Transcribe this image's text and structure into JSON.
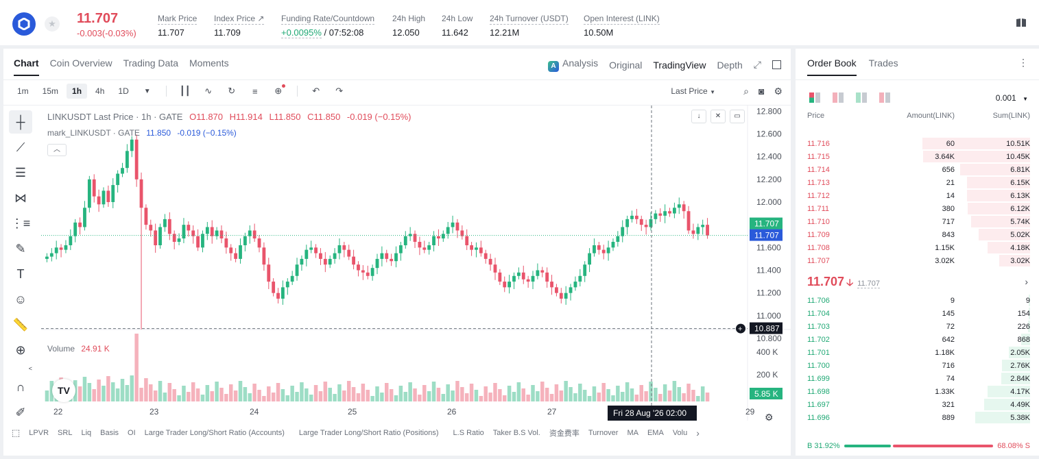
{
  "ticker": {
    "last_price": "11.707",
    "change": "-0.003(-0.03%)",
    "stats": [
      {
        "label": "Mark Price",
        "value": "11.707"
      },
      {
        "label": "Index Price ↗",
        "value": "11.709"
      },
      {
        "label": "Funding Rate/Countdown",
        "value_green": "+0.0095%",
        "value": " / 07:52:08"
      },
      {
        "label": "24h High",
        "value": "12.050"
      },
      {
        "label": "24h Low",
        "value": "11.642"
      },
      {
        "label": "24h Turnover (USDT)",
        "value": "12.21M"
      },
      {
        "label": "Open Interest (LINK)",
        "value": "10.50M"
      }
    ]
  },
  "chart_tabs": [
    "Chart",
    "Coin Overview",
    "Trading Data",
    "Moments"
  ],
  "view_tabs": {
    "analysis": "Analysis",
    "original": "Original",
    "tradingview": "TradingView",
    "depth": "Depth"
  },
  "timeframes": [
    "1m",
    "15m",
    "1h",
    "4h",
    "1D"
  ],
  "last_price_select": "Last Price",
  "legend": {
    "symbol": "LINKUSDT Last Price · 1h · GATE",
    "o": "O11.870",
    "h": "H11.914",
    "l": "L11.850",
    "c": "C11.850",
    "chg": "-0.019 (−0.15%)",
    "mark_name": "mark_LINKUSDT · GATE",
    "mark_val": "11.850",
    "mark_chg": "-0.019 (−0.15%)"
  },
  "volume": {
    "label": "Volume",
    "value": "24.91 K"
  },
  "price_axis": [
    "12.800",
    "12.600",
    "12.400",
    "12.200",
    "12.000",
    "11.800",
    "11.600",
    "11.400",
    "11.200",
    "11.000",
    "10.800"
  ],
  "volume_axis": [
    "400 K",
    "200 K"
  ],
  "price_tags": {
    "last": "11.707",
    "mark": "11.707",
    "cursor": "10.887",
    "vol": "5.85 K"
  },
  "x_axis": [
    "22",
    "23",
    "24",
    "25",
    "26",
    "27",
    "29"
  ],
  "crosshair_date": "Fri 28 Aug '26   02:00",
  "indicators": [
    "LPVR",
    "SRL",
    "Liq",
    "Basis",
    "OI",
    "Large Trader Long/Short Ratio (Accounts)",
    "Large Trader Long/Short Ratio (Positions)",
    "L.S Ratio",
    "Taker B.S Vol.",
    "资金费率",
    "Turnover",
    "MA",
    "EMA",
    "Volu"
  ],
  "colors": {
    "up": "#26b47f",
    "down": "#e9546b",
    "mark_line": "#2a5ada"
  },
  "chart_data": {
    "type": "candlestick",
    "title": "LINKUSDT Last Price · 1h · GATE",
    "ylim": [
      10.8,
      12.85
    ],
    "x_ticks": [
      "22",
      "23",
      "24",
      "25",
      "26",
      "27",
      "29"
    ],
    "series": [
      {
        "name": "LINKUSDT Last Price",
        "values": [
          11.52,
          11.55,
          11.6,
          11.58,
          11.62,
          11.7,
          11.82,
          11.78,
          11.95,
          12.2,
          12.05,
          11.98,
          12.1,
          12.0,
          12.15,
          12.25,
          12.3,
          12.45,
          12.55,
          12.2,
          11.95,
          11.8,
          11.75,
          11.62,
          11.78,
          11.85,
          11.72,
          11.65,
          11.68,
          11.8,
          11.75,
          11.7,
          11.6,
          11.72,
          11.78,
          11.7,
          11.75,
          11.68,
          11.6,
          11.55,
          11.5,
          11.62,
          11.7,
          11.75,
          11.68,
          11.6,
          11.45,
          11.3,
          11.2,
          11.15,
          11.25,
          11.3,
          11.35,
          11.45,
          11.5,
          11.58,
          11.6,
          11.55,
          11.5,
          11.45,
          11.5,
          11.55,
          11.62,
          11.58,
          11.52,
          11.45,
          11.4,
          11.38,
          11.35,
          11.42,
          11.5,
          11.55,
          11.5,
          11.48,
          11.55,
          11.62,
          11.7,
          11.72,
          11.65,
          11.6,
          11.58,
          11.62,
          11.7,
          11.68,
          11.72,
          11.78,
          11.82,
          11.75,
          11.7,
          11.62,
          11.58,
          11.6,
          11.55,
          11.5,
          11.45,
          11.38,
          11.3,
          11.25,
          11.3,
          11.35,
          11.38,
          11.32,
          11.3,
          11.35,
          11.4,
          11.38,
          11.3,
          11.25,
          11.2,
          11.15,
          11.2,
          11.25,
          11.3,
          11.35,
          11.45,
          11.55,
          11.62,
          11.58,
          11.55,
          11.6,
          11.65,
          11.7,
          11.78,
          11.85,
          11.88,
          11.85,
          11.8,
          11.78,
          11.85,
          11.9,
          11.88,
          11.92,
          11.9,
          11.95,
          11.98,
          11.92,
          11.75,
          11.72,
          11.78,
          11.8,
          11.707
        ]
      },
      {
        "name": "Volume",
        "values": []
      }
    ]
  },
  "orderbook": {
    "tabs": [
      "Order Book",
      "Trades"
    ],
    "precision": "0.001",
    "headers": [
      "Price",
      "Amount(LINK)",
      "Sum(LINK)"
    ],
    "asks": [
      {
        "price": "11.716",
        "amount": "60",
        "sum": "10.51K",
        "depth": 1.0
      },
      {
        "price": "11.715",
        "amount": "3.64K",
        "sum": "10.45K",
        "depth": 0.994
      },
      {
        "price": "11.714",
        "amount": "656",
        "sum": "6.81K",
        "depth": 0.648
      },
      {
        "price": "11.713",
        "amount": "21",
        "sum": "6.15K",
        "depth": 0.585
      },
      {
        "price": "11.712",
        "amount": "14",
        "sum": "6.13K",
        "depth": 0.583
      },
      {
        "price": "11.711",
        "amount": "380",
        "sum": "6.12K",
        "depth": 0.582
      },
      {
        "price": "11.710",
        "amount": "717",
        "sum": "5.74K",
        "depth": 0.546
      },
      {
        "price": "11.709",
        "amount": "843",
        "sum": "5.02K",
        "depth": 0.478
      },
      {
        "price": "11.708",
        "amount": "1.15K",
        "sum": "4.18K",
        "depth": 0.398
      },
      {
        "price": "11.707",
        "amount": "3.02K",
        "sum": "3.02K",
        "depth": 0.287
      }
    ],
    "mid": {
      "price": "11.707",
      "arrow": "🡣",
      "mark": "11.707"
    },
    "bids": [
      {
        "price": "11.706",
        "amount": "9",
        "sum": "9",
        "depth": 0.002
      },
      {
        "price": "11.704",
        "amount": "145",
        "sum": "154",
        "depth": 0.015
      },
      {
        "price": "11.703",
        "amount": "72",
        "sum": "226",
        "depth": 0.022
      },
      {
        "price": "11.702",
        "amount": "642",
        "sum": "868",
        "depth": 0.083
      },
      {
        "price": "11.701",
        "amount": "1.18K",
        "sum": "2.05K",
        "depth": 0.195
      },
      {
        "price": "11.700",
        "amount": "716",
        "sum": "2.76K",
        "depth": 0.263
      },
      {
        "price": "11.699",
        "amount": "74",
        "sum": "2.84K",
        "depth": 0.27
      },
      {
        "price": "11.698",
        "amount": "1.33K",
        "sum": "4.17K",
        "depth": 0.397
      },
      {
        "price": "11.697",
        "amount": "321",
        "sum": "4.49K",
        "depth": 0.427
      },
      {
        "price": "11.696",
        "amount": "889",
        "sum": "5.38K",
        "depth": 0.512
      }
    ],
    "buy_ratio": "B 31.92%",
    "sell_ratio": "68.08% S",
    "buy_fraction": 0.3192
  }
}
